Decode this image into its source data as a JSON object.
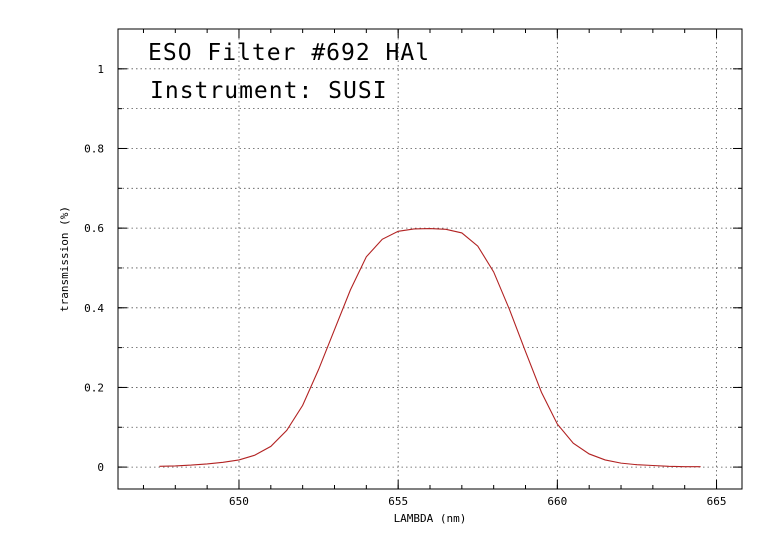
{
  "chart_data": {
    "type": "line",
    "annotations": [
      "ESO Filter #692 HAl",
      "Instrument: SUSI"
    ],
    "xlabel": "LAMBDA (nm)",
    "ylabel": "transmission (%)",
    "xlim": [
      646.2,
      665.8
    ],
    "ylim": [
      -0.055,
      1.1
    ],
    "xticks": [
      650,
      655,
      660,
      665
    ],
    "xtick_labels": [
      "650",
      "655",
      "660",
      "665"
    ],
    "xminor_step": 1,
    "yticks": [
      0,
      0.2,
      0.4,
      0.6,
      0.8,
      1
    ],
    "ytick_labels": [
      "0",
      "0.2",
      "0.4",
      "0.6",
      "0.8",
      "1"
    ],
    "yminor_step": 0.1,
    "grid": true,
    "series": [
      {
        "color": "#b22222",
        "x": [
          647.5,
          648.0,
          648.5,
          649.0,
          649.5,
          650.0,
          650.5,
          651.0,
          651.5,
          652.0,
          652.5,
          653.0,
          653.5,
          654.0,
          654.5,
          655.0,
          655.5,
          656.0,
          656.5,
          657.0,
          657.5,
          658.0,
          658.5,
          659.0,
          659.5,
          660.0,
          660.5,
          661.0,
          661.5,
          662.0,
          662.5,
          663.0,
          663.5,
          664.0,
          664.5
        ],
        "y": [
          0.002,
          0.003,
          0.005,
          0.008,
          0.012,
          0.018,
          0.03,
          0.052,
          0.092,
          0.155,
          0.245,
          0.345,
          0.445,
          0.528,
          0.572,
          0.592,
          0.598,
          0.599,
          0.597,
          0.588,
          0.555,
          0.49,
          0.395,
          0.29,
          0.188,
          0.108,
          0.06,
          0.033,
          0.018,
          0.01,
          0.006,
          0.004,
          0.002,
          0.001,
          0.001
        ]
      }
    ]
  }
}
